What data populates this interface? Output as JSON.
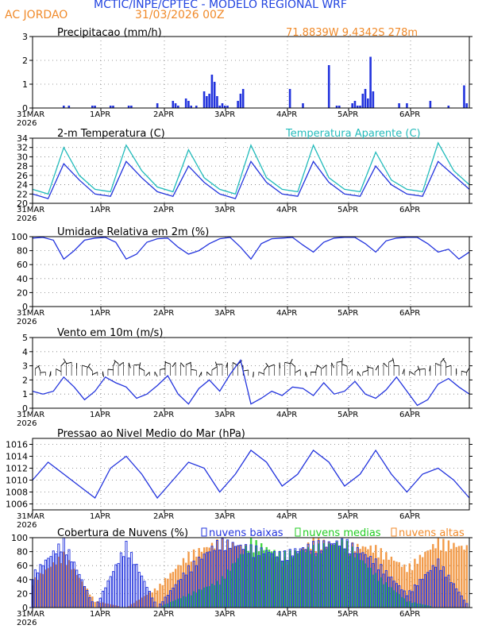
{
  "header": {
    "title": "MCTIC/INPE/CPTEC - MODELO REGIONAL WRF",
    "station": "AC JORDAO",
    "run": "31/03/2026 00Z",
    "coords": "71.8839W 9.4342S 278m"
  },
  "colors": {
    "blue": "#2233dd",
    "teal": "#22bbbb",
    "green": "#22cc22",
    "orange": "#f08a2a",
    "black": "#000000"
  },
  "chart_data": [
    {
      "type": "bar",
      "title": "Precipitacao (mm/h)",
      "x_tick_labels": [
        "31MAR",
        "1APR",
        "2APR",
        "3APR",
        "4APR",
        "5APR",
        "6APR"
      ],
      "x_year": "2026",
      "ylim": [
        0,
        3
      ],
      "y_ticks": [
        0,
        1,
        2,
        3
      ],
      "hours": [
        12,
        14,
        23,
        24,
        30,
        31,
        37,
        38,
        48,
        54,
        55,
        56,
        59,
        60,
        61,
        63,
        66,
        67,
        68,
        69,
        70,
        71,
        72,
        73,
        74,
        75,
        79,
        80,
        81,
        99,
        104,
        114,
        117,
        118,
        123,
        124,
        125,
        126,
        127,
        128,
        129,
        130,
        131,
        141,
        144,
        153,
        160,
        166,
        167
      ],
      "values": [
        0.1,
        0.1,
        0.1,
        0.1,
        0.1,
        0.1,
        0.1,
        0.1,
        0.2,
        0.3,
        0.2,
        0.1,
        0.4,
        0.3,
        0.1,
        0.1,
        0.7,
        0.5,
        0.6,
        1.4,
        1.1,
        0.5,
        0.1,
        0.2,
        0.1,
        0.1,
        0.3,
        0.6,
        0.8,
        0.8,
        0.2,
        1.8,
        0.1,
        0.1,
        0.2,
        0.3,
        0.1,
        0.1,
        0.6,
        0.8,
        0.4,
        2.15,
        0.7,
        0.2,
        0.2,
        0.3,
        0.1,
        0.95,
        0.2
      ]
    },
    {
      "type": "line",
      "title": "2-m Temperatura (C)",
      "title2": "Temperatura Aparente (C)",
      "ylim": [
        20,
        34
      ],
      "y_ticks": [
        20,
        22,
        24,
        26,
        28,
        30,
        32,
        34
      ],
      "series": [
        {
          "name": "2-m Temperatura (C)",
          "hours": [
            0,
            6,
            12,
            18,
            24,
            30,
            36,
            42,
            48,
            54,
            60,
            66,
            72,
            78,
            84,
            90,
            96,
            102,
            108,
            114,
            120,
            126,
            132,
            138,
            144,
            150,
            156,
            162,
            168
          ],
          "values": [
            22,
            21,
            28.5,
            25,
            22,
            21.5,
            29,
            25.5,
            22.5,
            21.5,
            28,
            24.5,
            22,
            21,
            29,
            24.5,
            22,
            21.5,
            29,
            24.5,
            22,
            21.5,
            28,
            24,
            22,
            21.5,
            29,
            26,
            23
          ]
        },
        {
          "name": "Temperatura Aparente (C)",
          "hours": [
            0,
            6,
            12,
            18,
            24,
            30,
            36,
            42,
            48,
            54,
            60,
            66,
            72,
            78,
            84,
            90,
            96,
            102,
            108,
            114,
            120,
            126,
            132,
            138,
            144,
            150,
            156,
            162,
            168
          ],
          "values": [
            23,
            22,
            32,
            26,
            23,
            22.5,
            32.5,
            27,
            23.5,
            22.5,
            31.5,
            25.5,
            23,
            22,
            32.5,
            25.5,
            23,
            22.5,
            32.5,
            25.5,
            23,
            22.5,
            31,
            25,
            23,
            22.5,
            33,
            27,
            24
          ]
        }
      ]
    },
    {
      "type": "line",
      "title": "Umidade Relativa em 2m (%)",
      "ylim": [
        0,
        100
      ],
      "y_ticks": [
        0,
        20,
        40,
        60,
        80,
        100
      ],
      "hours": [
        0,
        4,
        8,
        12,
        16,
        20,
        24,
        28,
        32,
        36,
        40,
        44,
        48,
        52,
        56,
        60,
        64,
        68,
        72,
        76,
        80,
        84,
        88,
        92,
        96,
        100,
        104,
        108,
        112,
        116,
        120,
        124,
        128,
        132,
        136,
        140,
        144,
        148,
        152,
        156,
        160,
        164,
        168
      ],
      "values": [
        98,
        99,
        95,
        68,
        80,
        95,
        98,
        99,
        92,
        68,
        75,
        92,
        97,
        98,
        85,
        75,
        80,
        90,
        97,
        99,
        85,
        68,
        90,
        97,
        98,
        99,
        88,
        78,
        92,
        98,
        99,
        99,
        90,
        78,
        94,
        98,
        99,
        99,
        90,
        78,
        82,
        68,
        78
      ]
    },
    {
      "type": "line",
      "title": "Vento em 10m (m/s)",
      "ylim": [
        0,
        5
      ],
      "y_ticks": [
        0,
        1,
        2,
        3,
        4,
        5
      ],
      "hours": [
        0,
        4,
        8,
        12,
        16,
        20,
        24,
        28,
        32,
        36,
        40,
        44,
        48,
        52,
        56,
        60,
        64,
        68,
        72,
        76,
        80,
        84,
        88,
        92,
        96,
        100,
        104,
        108,
        112,
        116,
        120,
        124,
        128,
        132,
        136,
        140,
        144,
        148,
        152,
        156,
        160,
        164,
        168
      ],
      "values": [
        1.2,
        1,
        1.2,
        2.2,
        1.5,
        0.6,
        1.2,
        2.2,
        1.8,
        1.5,
        0.7,
        1,
        1.6,
        2.3,
        1,
        0.3,
        1.4,
        2,
        1.2,
        2.4,
        3.4,
        0.3,
        0.7,
        1.2,
        0.9,
        1.5,
        1.4,
        0.9,
        1.8,
        1,
        1.2,
        1.9,
        1,
        0.7,
        1.3,
        2.2,
        1.2,
        0.2,
        0.6,
        1.7,
        2.1,
        1.5,
        1
      ]
    },
    {
      "type": "line",
      "title": "Pressao ao Nivel Medio do Mar (hPa)",
      "ylim": [
        1005,
        1017
      ],
      "y_ticks": [
        1006,
        1008,
        1010,
        1012,
        1014,
        1016
      ],
      "hours": [
        0,
        6,
        12,
        18,
        24,
        30,
        36,
        42,
        48,
        54,
        60,
        66,
        72,
        78,
        84,
        90,
        96,
        102,
        108,
        114,
        120,
        126,
        132,
        138,
        144,
        150,
        156,
        162,
        168
      ],
      "values": [
        1010,
        1013,
        1011,
        1009,
        1007,
        1012,
        1014,
        1011,
        1007,
        1010,
        1013,
        1012,
        1008,
        1011,
        1015,
        1013,
        1009,
        1011,
        1015,
        1013,
        1009,
        1011,
        1015,
        1011,
        1008,
        1011,
        1012,
        1010,
        1007
      ]
    },
    {
      "type": "bar",
      "title": "Cobertura de Nuvens (%)",
      "ylim": [
        0,
        100
      ],
      "y_ticks": [
        0,
        20,
        40,
        60,
        80,
        100
      ],
      "series": [
        {
          "name": "nuvens baixas",
          "hours": [
            0,
            12,
            24,
            36,
            48,
            60,
            72,
            84,
            96,
            108,
            120,
            132,
            144,
            156,
            168
          ],
          "values": [
            50,
            100,
            0,
            95,
            0,
            60,
            100,
            90,
            80,
            95,
            100,
            70,
            20,
            70,
            0
          ]
        },
        {
          "name": "nuvens medias",
          "hours": [
            0,
            12,
            24,
            36,
            48,
            60,
            72,
            84,
            96,
            108,
            120,
            132,
            144,
            156,
            168
          ],
          "values": [
            0,
            0,
            0,
            0,
            0,
            20,
            40,
            100,
            80,
            90,
            100,
            50,
            10,
            0,
            0
          ]
        },
        {
          "name": "nuvens altas",
          "hours": [
            0,
            12,
            24,
            36,
            48,
            60,
            72,
            84,
            96,
            108,
            120,
            132,
            144,
            156,
            168
          ],
          "values": [
            40,
            80,
            10,
            0,
            30,
            80,
            100,
            90,
            70,
            100,
            95,
            90,
            60,
            100,
            90
          ]
        }
      ]
    }
  ]
}
